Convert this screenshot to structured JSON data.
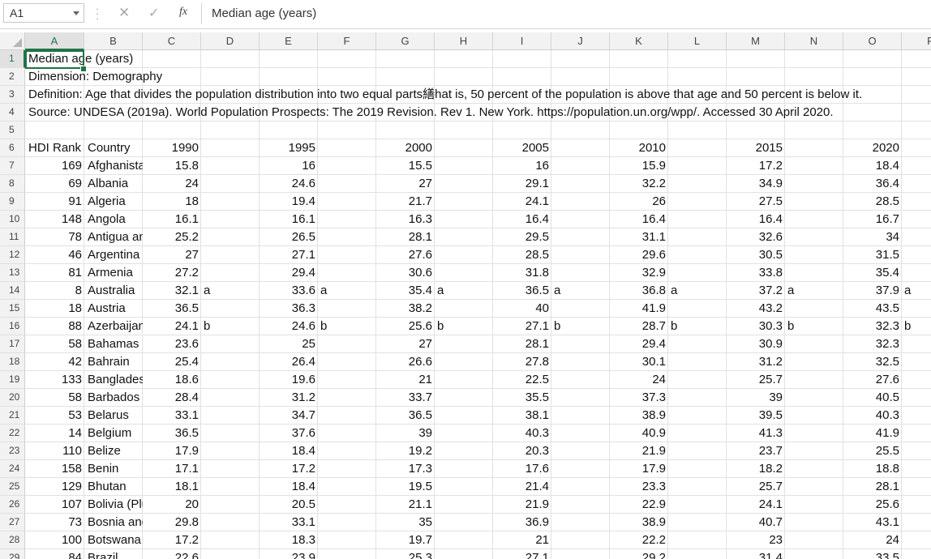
{
  "formula_bar": {
    "name_box": "A1",
    "cancel_icon": "✕",
    "enter_icon": "✓",
    "fx_label": "fx",
    "formula": "Median age (years)"
  },
  "columns": [
    "A",
    "B",
    "C",
    "D",
    "E",
    "F",
    "G",
    "H",
    "I",
    "J",
    "K",
    "L",
    "M",
    "N",
    "O",
    "P"
  ],
  "row_numbers": [
    1,
    2,
    3,
    4,
    5,
    6,
    7,
    8,
    9,
    10,
    11,
    12,
    13,
    14,
    15,
    16,
    17,
    18,
    19,
    20,
    21,
    22,
    23,
    24,
    25,
    26,
    27,
    28,
    29
  ],
  "header_lines": [
    "Median age (years)",
    "Dimension: Demography",
    "Definition: Age that divides the population distribution into two equal parts繕hat is, 50 percent of the population is above that age and 50 percent is below it.",
    "Source: UNDESA (2019a). World Population Prospects: The 2019 Revision. Rev 1. New York. https://population.un.org/wpp/. Accessed 30 April 2020."
  ],
  "table_header": [
    "HDI Rank",
    "Country",
    "1990",
    "1995",
    "2000",
    "2005",
    "2010",
    "2015",
    "2020"
  ],
  "rows": [
    {
      "rank": "169",
      "country": "Afghanistan",
      "v": [
        "15.8",
        "16",
        "15.5",
        "16",
        "15.9",
        "17.2",
        "18.4"
      ],
      "note": ""
    },
    {
      "rank": "69",
      "country": "Albania",
      "v": [
        "24",
        "24.6",
        "27",
        "29.1",
        "32.2",
        "34.9",
        "36.4"
      ],
      "note": ""
    },
    {
      "rank": "91",
      "country": "Algeria",
      "v": [
        "18",
        "19.4",
        "21.7",
        "24.1",
        "26",
        "27.5",
        "28.5"
      ],
      "note": ""
    },
    {
      "rank": "148",
      "country": "Angola",
      "v": [
        "16.1",
        "16.1",
        "16.3",
        "16.4",
        "16.4",
        "16.4",
        "16.7"
      ],
      "note": ""
    },
    {
      "rank": "78",
      "country": "Antigua and Barbuda",
      "v": [
        "25.2",
        "26.5",
        "28.1",
        "29.5",
        "31.1",
        "32.6",
        "34"
      ],
      "note": ""
    },
    {
      "rank": "46",
      "country": "Argentina",
      "v": [
        "27",
        "27.1",
        "27.6",
        "28.5",
        "29.6",
        "30.5",
        "31.5"
      ],
      "note": ""
    },
    {
      "rank": "81",
      "country": "Armenia",
      "v": [
        "27.2",
        "29.4",
        "30.6",
        "31.8",
        "32.9",
        "33.8",
        "35.4"
      ],
      "note": ""
    },
    {
      "rank": "8",
      "country": "Australia",
      "v": [
        "32.1",
        "33.6",
        "35.4",
        "36.5",
        "36.8",
        "37.2",
        "37.9"
      ],
      "note": "a"
    },
    {
      "rank": "18",
      "country": "Austria",
      "v": [
        "36.5",
        "36.3",
        "38.2",
        "40",
        "41.9",
        "43.2",
        "43.5"
      ],
      "note": ""
    },
    {
      "rank": "88",
      "country": "Azerbaijan",
      "v": [
        "24.1",
        "24.6",
        "25.6",
        "27.1",
        "28.7",
        "30.3",
        "32.3"
      ],
      "note": "b"
    },
    {
      "rank": "58",
      "country": "Bahamas",
      "v": [
        "23.6",
        "25",
        "27",
        "28.1",
        "29.4",
        "30.9",
        "32.3"
      ],
      "note": ""
    },
    {
      "rank": "42",
      "country": "Bahrain",
      "v": [
        "25.4",
        "26.4",
        "26.6",
        "27.8",
        "30.1",
        "31.2",
        "32.5"
      ],
      "note": ""
    },
    {
      "rank": "133",
      "country": "Bangladesh",
      "v": [
        "18.6",
        "19.6",
        "21",
        "22.5",
        "24",
        "25.7",
        "27.6"
      ],
      "note": ""
    },
    {
      "rank": "58",
      "country": "Barbados",
      "v": [
        "28.4",
        "31.2",
        "33.7",
        "35.5",
        "37.3",
        "39",
        "40.5"
      ],
      "note": ""
    },
    {
      "rank": "53",
      "country": "Belarus",
      "v": [
        "33.1",
        "34.7",
        "36.5",
        "38.1",
        "38.9",
        "39.5",
        "40.3"
      ],
      "note": ""
    },
    {
      "rank": "14",
      "country": "Belgium",
      "v": [
        "36.5",
        "37.6",
        "39",
        "40.3",
        "40.9",
        "41.3",
        "41.9"
      ],
      "note": ""
    },
    {
      "rank": "110",
      "country": "Belize",
      "v": [
        "17.9",
        "18.4",
        "19.2",
        "20.3",
        "21.9",
        "23.7",
        "25.5"
      ],
      "note": ""
    },
    {
      "rank": "158",
      "country": "Benin",
      "v": [
        "17.1",
        "17.2",
        "17.3",
        "17.6",
        "17.9",
        "18.2",
        "18.8"
      ],
      "note": ""
    },
    {
      "rank": "129",
      "country": "Bhutan",
      "v": [
        "18.1",
        "18.4",
        "19.5",
        "21.4",
        "23.3",
        "25.7",
        "28.1"
      ],
      "note": ""
    },
    {
      "rank": "107",
      "country": "Bolivia (Plurinational State of)",
      "v": [
        "20",
        "20.5",
        "21.1",
        "21.9",
        "22.9",
        "24.1",
        "25.6"
      ],
      "note": ""
    },
    {
      "rank": "73",
      "country": "Bosnia and Herzegovina",
      "v": [
        "29.8",
        "33.1",
        "35",
        "36.9",
        "38.9",
        "40.7",
        "43.1"
      ],
      "note": ""
    },
    {
      "rank": "100",
      "country": "Botswana",
      "v": [
        "17.2",
        "18.3",
        "19.7",
        "21",
        "22.2",
        "23",
        "24"
      ],
      "note": ""
    },
    {
      "rank": "84",
      "country": "Brazil",
      "v": [
        "22.6",
        "23.9",
        "25.3",
        "27.1",
        "29.2",
        "31.4",
        "33.5"
      ],
      "note": ""
    }
  ]
}
